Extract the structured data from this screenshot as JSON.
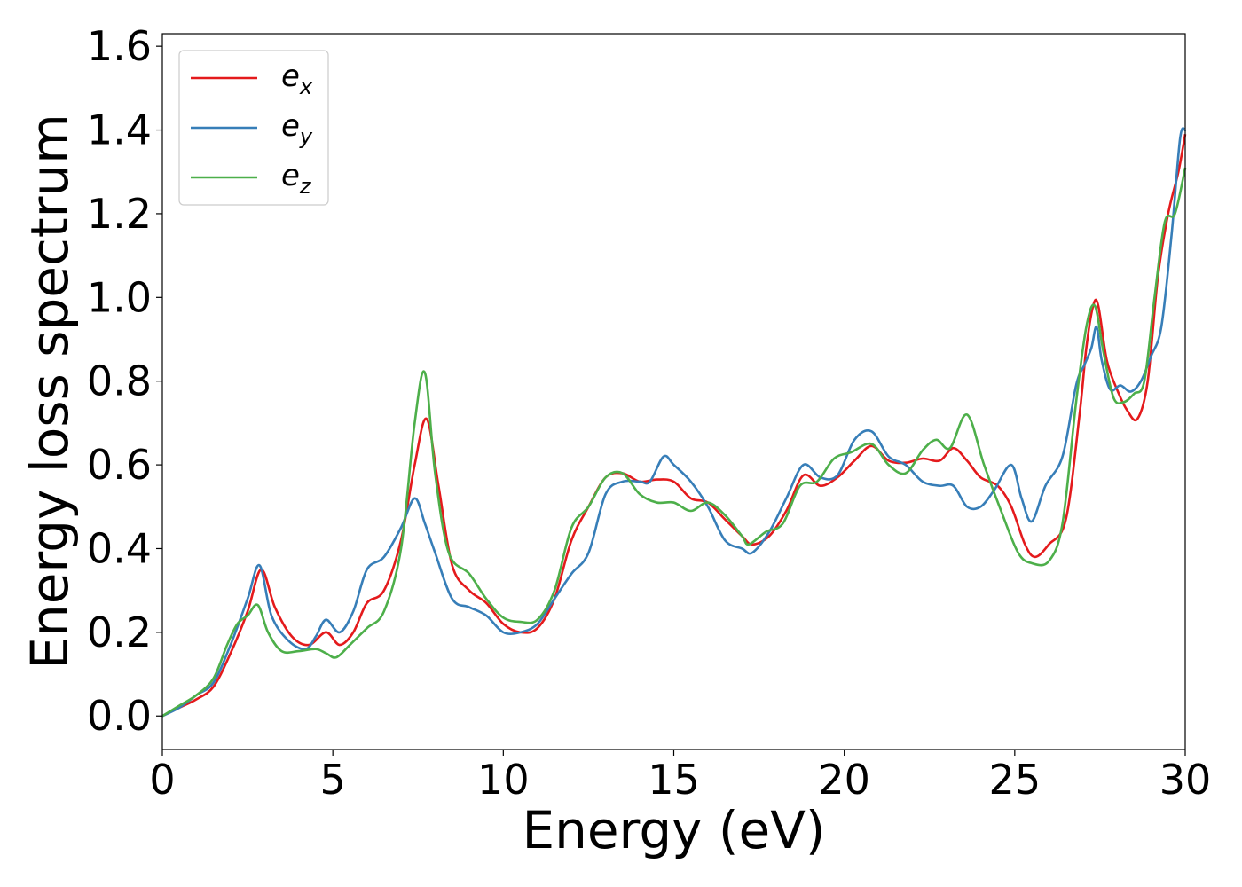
{
  "chart_data": {
    "type": "line",
    "title": "",
    "xlabel": "Energy (eV)",
    "ylabel": "Energy loss spectrum",
    "xlim": [
      0,
      30
    ],
    "ylim": [
      -0.08,
      1.63
    ],
    "xticks": [
      0,
      5,
      10,
      15,
      20,
      25,
      30
    ],
    "xtick_labels": [
      "0",
      "5",
      "10",
      "15",
      "20",
      "25",
      "30"
    ],
    "yticks": [
      0.0,
      0.2,
      0.4,
      0.6,
      0.8,
      1.0,
      1.2,
      1.4,
      1.6
    ],
    "ytick_labels": [
      "0.0",
      "0.2",
      "0.4",
      "0.6",
      "0.8",
      "1.0",
      "1.2",
      "1.4",
      "1.6"
    ],
    "grid": false,
    "legend_position": "top-left",
    "series": [
      {
        "name": "e_x",
        "legend_base": "e",
        "legend_sub": "x",
        "color": "#e41a1c",
        "x": [
          0,
          0.5,
          1,
          1.5,
          2,
          2.5,
          2.9,
          3.3,
          3.8,
          4.3,
          4.8,
          5.2,
          5.6,
          6.0,
          6.5,
          7.0,
          7.4,
          7.75,
          8.1,
          8.5,
          9.0,
          9.5,
          10.0,
          10.5,
          11.0,
          11.5,
          12.0,
          12.5,
          13.0,
          13.5,
          14.0,
          14.5,
          15.0,
          15.5,
          16.0,
          16.5,
          17.0,
          17.3,
          17.8,
          18.3,
          18.8,
          19.3,
          19.8,
          20.3,
          20.8,
          21.3,
          21.8,
          22.3,
          22.8,
          23.2,
          23.6,
          24.0,
          24.5,
          24.9,
          25.3,
          25.6,
          26.0,
          26.5,
          26.9,
          27.1,
          27.3,
          27.45,
          27.7,
          28.0,
          28.3,
          28.6,
          28.9,
          29.2,
          29.5,
          29.8,
          30.0
        ],
        "y": [
          0.0,
          0.02,
          0.04,
          0.07,
          0.15,
          0.25,
          0.35,
          0.26,
          0.19,
          0.17,
          0.2,
          0.17,
          0.2,
          0.27,
          0.3,
          0.42,
          0.6,
          0.71,
          0.55,
          0.36,
          0.3,
          0.27,
          0.22,
          0.2,
          0.21,
          0.28,
          0.42,
          0.5,
          0.57,
          0.58,
          0.56,
          0.565,
          0.56,
          0.52,
          0.51,
          0.47,
          0.43,
          0.41,
          0.43,
          0.49,
          0.575,
          0.55,
          0.57,
          0.61,
          0.645,
          0.61,
          0.605,
          0.615,
          0.61,
          0.64,
          0.61,
          0.57,
          0.55,
          0.5,
          0.41,
          0.38,
          0.41,
          0.47,
          0.72,
          0.88,
          0.98,
          0.98,
          0.85,
          0.78,
          0.73,
          0.71,
          0.8,
          1.05,
          1.2,
          1.3,
          1.39
        ]
      },
      {
        "name": "e_y",
        "legend_base": "e",
        "legend_sub": "y",
        "color": "#377eb8",
        "x": [
          0,
          0.5,
          1,
          1.5,
          2,
          2.5,
          2.85,
          3.2,
          3.7,
          4.2,
          4.5,
          4.8,
          5.2,
          5.6,
          6.0,
          6.5,
          7.0,
          7.4,
          7.7,
          8.0,
          8.5,
          9.0,
          9.5,
          10.0,
          10.5,
          11.0,
          11.5,
          12.0,
          12.5,
          13.0,
          13.5,
          14.0,
          14.3,
          14.7,
          15.0,
          15.5,
          16.0,
          16.5,
          17.0,
          17.3,
          17.8,
          18.3,
          18.8,
          19.3,
          19.8,
          20.3,
          20.8,
          21.3,
          21.8,
          22.3,
          22.8,
          23.2,
          23.6,
          24.0,
          24.4,
          24.9,
          25.2,
          25.5,
          25.9,
          26.4,
          26.8,
          27.05,
          27.25,
          27.4,
          27.55,
          27.8,
          28.1,
          28.4,
          28.7,
          29.0,
          29.3,
          29.6,
          29.85,
          30.0
        ],
        "y": [
          0.0,
          0.02,
          0.05,
          0.08,
          0.17,
          0.28,
          0.36,
          0.24,
          0.18,
          0.16,
          0.19,
          0.23,
          0.2,
          0.25,
          0.35,
          0.38,
          0.45,
          0.52,
          0.46,
          0.39,
          0.28,
          0.26,
          0.24,
          0.2,
          0.2,
          0.22,
          0.28,
          0.34,
          0.39,
          0.53,
          0.56,
          0.56,
          0.56,
          0.62,
          0.6,
          0.56,
          0.5,
          0.42,
          0.4,
          0.39,
          0.44,
          0.52,
          0.6,
          0.57,
          0.575,
          0.66,
          0.68,
          0.62,
          0.6,
          0.56,
          0.55,
          0.55,
          0.5,
          0.5,
          0.54,
          0.6,
          0.52,
          0.465,
          0.55,
          0.62,
          0.79,
          0.84,
          0.88,
          0.93,
          0.85,
          0.78,
          0.79,
          0.775,
          0.8,
          0.86,
          0.93,
          1.15,
          1.38,
          1.4
        ]
      },
      {
        "name": "e_z",
        "legend_base": "e",
        "legend_sub": "z",
        "color": "#4daf4a",
        "x": [
          0,
          0.5,
          1,
          1.5,
          1.9,
          2.2,
          2.5,
          2.8,
          3.1,
          3.5,
          4.0,
          4.5,
          4.8,
          5.1,
          5.5,
          6.0,
          6.5,
          7.0,
          7.4,
          7.7,
          8.0,
          8.4,
          9.0,
          9.5,
          10.0,
          10.5,
          11.0,
          11.5,
          12.0,
          12.5,
          13.0,
          13.5,
          14.0,
          14.5,
          15.0,
          15.5,
          16.0,
          16.5,
          17.0,
          17.2,
          17.7,
          18.2,
          18.7,
          19.2,
          19.7,
          20.2,
          20.8,
          21.3,
          21.8,
          22.3,
          22.7,
          23.1,
          23.6,
          24.1,
          24.6,
          25.1,
          25.5,
          26.0,
          26.4,
          26.8,
          27.1,
          27.35,
          27.6,
          27.9,
          28.2,
          28.5,
          28.8,
          29.1,
          29.4,
          29.7,
          30.0
        ],
        "y": [
          0.0,
          0.025,
          0.05,
          0.09,
          0.17,
          0.22,
          0.24,
          0.265,
          0.2,
          0.155,
          0.155,
          0.16,
          0.15,
          0.14,
          0.17,
          0.21,
          0.25,
          0.4,
          0.7,
          0.82,
          0.58,
          0.39,
          0.34,
          0.28,
          0.235,
          0.225,
          0.23,
          0.3,
          0.45,
          0.5,
          0.57,
          0.58,
          0.53,
          0.51,
          0.51,
          0.49,
          0.51,
          0.48,
          0.43,
          0.41,
          0.44,
          0.46,
          0.55,
          0.56,
          0.615,
          0.63,
          0.65,
          0.6,
          0.58,
          0.635,
          0.66,
          0.64,
          0.72,
          0.6,
          0.49,
          0.39,
          0.365,
          0.37,
          0.46,
          0.75,
          0.93,
          0.98,
          0.87,
          0.76,
          0.75,
          0.77,
          0.8,
          1.0,
          1.18,
          1.2,
          1.31
        ]
      }
    ]
  }
}
